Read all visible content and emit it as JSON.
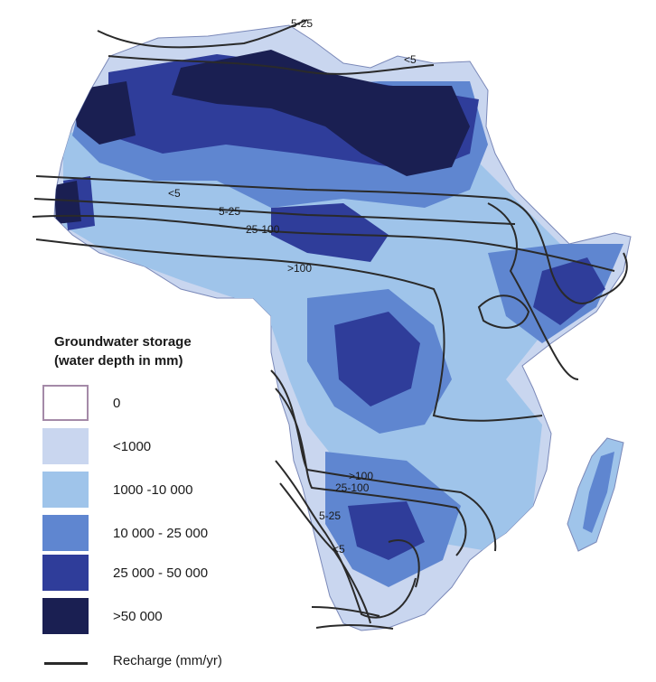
{
  "legend": {
    "title_line1": "Groundwater storage",
    "title_line2": "(water depth in mm)",
    "classes": [
      {
        "label": "0",
        "color": "#ffffff"
      },
      {
        "label": "<1000",
        "color": "#c9d6ef"
      },
      {
        "label": "1000 -10 000",
        "color": "#9fc4ea"
      },
      {
        "label": "10 000 - 25 000",
        "color": "#5f86d0"
      },
      {
        "label": "25 000 - 50 000",
        "color": "#2f3d9a"
      },
      {
        "label": ">50 000",
        "color": "#1a1f52"
      }
    ],
    "line_label": "Recharge (mm/yr)",
    "line_color": "#2a2a2a"
  },
  "contour_labels": {
    "north_5_25": "5-25",
    "north_lt5": "<5",
    "sahel_lt5": "<5",
    "sahel_5_25": "5-25",
    "sahel_25_100": "25-100",
    "central_gt100": ">100",
    "south_gt100": ">100",
    "south_25_100": "25-100",
    "south_5_25": "5-25",
    "south_lt5": "<5"
  }
}
